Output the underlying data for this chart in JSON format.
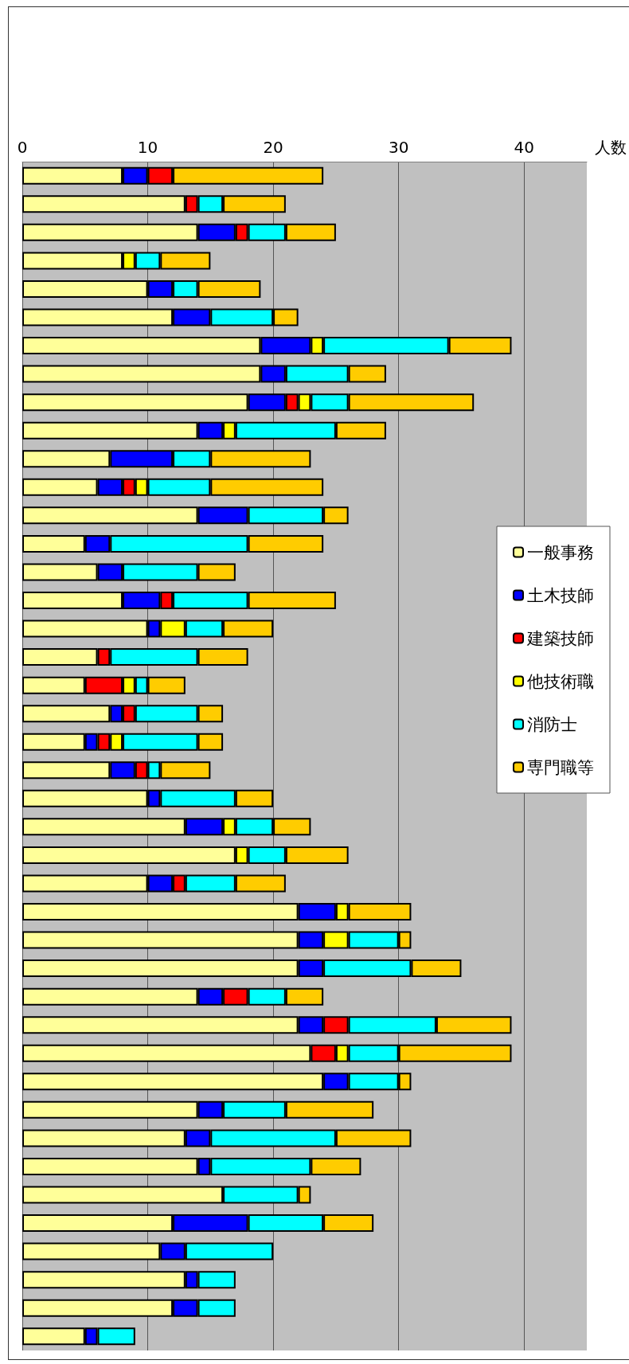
{
  "chart_data": {
    "type": "bar",
    "orientation": "horizontal",
    "stacked": true,
    "xlabel": "人数",
    "categories": [
      null,
      null,
      null,
      null,
      null,
      null,
      null,
      null,
      null,
      null,
      null,
      null,
      null,
      null,
      null,
      null,
      null,
      null,
      null,
      null,
      null,
      null,
      null,
      null,
      null,
      null,
      null,
      null,
      null,
      null,
      null,
      null,
      null,
      null,
      null,
      null,
      null,
      null,
      null,
      null,
      null,
      null
    ],
    "xlim": [
      0,
      45
    ],
    "xticks": [
      0,
      10,
      20,
      30,
      40
    ],
    "grid": "x",
    "legend": "right",
    "series": [
      {
        "name": "一般事務",
        "color": "#ffff99",
        "values": [
          8,
          13,
          14,
          8,
          10,
          12,
          19,
          19,
          18,
          14,
          7,
          6,
          14,
          5,
          6,
          8,
          10,
          6,
          5,
          7,
          5,
          7,
          10,
          13,
          17,
          10,
          22,
          22,
          22,
          14,
          22,
          23,
          24,
          14,
          13,
          14,
          16,
          12,
          11,
          13,
          12,
          5
        ]
      },
      {
        "name": "土木技師",
        "color": "#0000ff",
        "values": [
          2,
          0,
          3,
          0,
          2,
          3,
          4,
          2,
          3,
          2,
          5,
          2,
          4,
          2,
          2,
          3,
          1,
          0,
          0,
          1,
          1,
          2,
          1,
          3,
          0,
          2,
          3,
          2,
          2,
          2,
          2,
          0,
          2,
          2,
          2,
          1,
          0,
          6,
          2,
          1,
          2,
          1
        ]
      },
      {
        "name": "建築技師",
        "color": "#ff0000",
        "values": [
          2,
          1,
          1,
          0,
          0,
          0,
          0,
          0,
          1,
          0,
          0,
          1,
          0,
          0,
          0,
          1,
          0,
          1,
          3,
          1,
          1,
          1,
          0,
          0,
          0,
          1,
          0,
          0,
          0,
          2,
          2,
          2,
          0,
          0,
          0,
          0,
          0,
          0,
          0,
          0,
          0,
          0
        ]
      },
      {
        "name": "他技術職",
        "color": "#ffff00",
        "values": [
          0,
          0,
          0,
          1,
          0,
          0,
          1,
          0,
          1,
          1,
          0,
          1,
          0,
          0,
          0,
          0,
          2,
          0,
          1,
          0,
          1,
          0,
          0,
          1,
          1,
          0,
          1,
          2,
          0,
          0,
          0,
          1,
          0,
          0,
          0,
          0,
          0,
          0,
          0,
          0,
          0,
          0
        ]
      },
      {
        "name": "消防士",
        "color": "#00ffff",
        "values": [
          0,
          2,
          3,
          2,
          2,
          5,
          10,
          5,
          3,
          8,
          3,
          5,
          6,
          11,
          6,
          6,
          3,
          7,
          1,
          5,
          6,
          1,
          6,
          3,
          3,
          4,
          0,
          4,
          7,
          3,
          7,
          4,
          4,
          5,
          10,
          8,
          6,
          6,
          7,
          3,
          3,
          3
        ]
      },
      {
        "name": "専門職等",
        "color": "#ffcc00",
        "values": [
          12,
          5,
          4,
          4,
          5,
          2,
          5,
          3,
          10,
          4,
          8,
          9,
          2,
          6,
          3,
          7,
          4,
          4,
          3,
          2,
          2,
          4,
          3,
          3,
          5,
          4,
          5,
          1,
          4,
          3,
          6,
          9,
          1,
          7,
          6,
          4,
          1,
          4,
          0,
          0,
          0,
          0
        ]
      }
    ]
  }
}
